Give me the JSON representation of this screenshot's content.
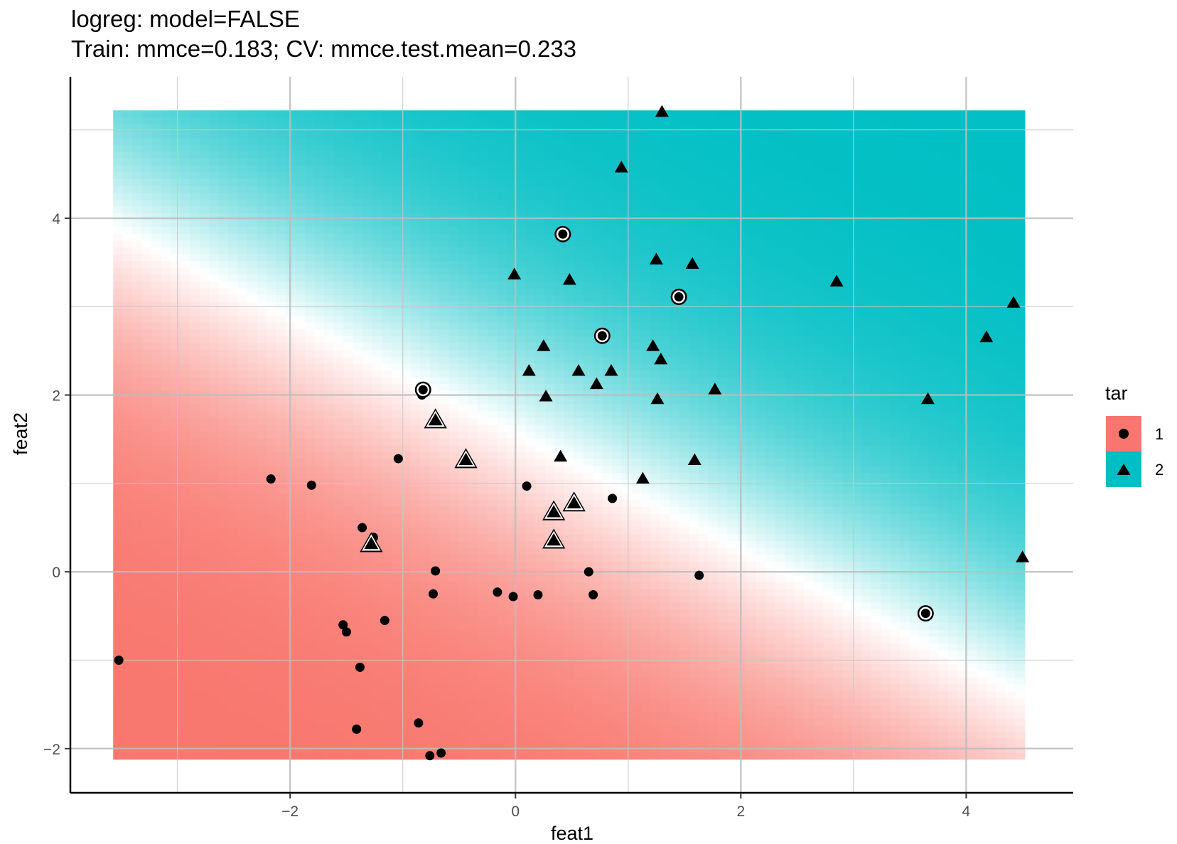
{
  "chart_data": {
    "type": "scatter",
    "title": "logreg: model=FALSE",
    "subtitle": "Train: mmce=0.183; CV: mmce.test.mean=0.233",
    "xlabel": "feat1",
    "ylabel": "feat2",
    "xlim": [
      -3.95,
      4.95
    ],
    "ylim": [
      -2.5,
      5.6
    ],
    "x_ticks": [
      -2,
      0,
      2,
      4
    ],
    "x_tick_labels": [
      "−2",
      "0",
      "2",
      "4"
    ],
    "y_ticks": [
      -2,
      0,
      2,
      4
    ],
    "y_tick_labels": [
      "−2",
      "0",
      "2",
      "4"
    ],
    "grid": true,
    "background": {
      "type": "probability-surface",
      "x_range": [
        -3.57,
        4.52
      ],
      "y_range": [
        -2.12,
        5.22
      ],
      "boundary": {
        "slope": -0.655,
        "intercept": 1.57
      },
      "color_class1": "#F8766D",
      "color_class2": "#00BFC4"
    },
    "legend": {
      "title": "tar",
      "position": "right",
      "entries": [
        {
          "label": "1",
          "shape": "circle",
          "color": "#F8766D"
        },
        {
          "label": "2",
          "shape": "triangle",
          "color": "#00BFC4"
        }
      ]
    },
    "series": [
      {
        "name": "1",
        "shape": "circle",
        "points": [
          [
            -3.52,
            -1.0
          ],
          [
            -2.17,
            1.05
          ],
          [
            -1.81,
            0.98
          ],
          [
            -1.36,
            0.5
          ],
          [
            -1.26,
            0.39
          ],
          [
            -1.04,
            1.28
          ],
          [
            -0.83,
            2.0
          ],
          [
            -0.71,
            0.01
          ],
          [
            -0.73,
            -0.25
          ],
          [
            -1.53,
            -0.6
          ],
          [
            -1.5,
            -0.68
          ],
          [
            -1.16,
            -0.55
          ],
          [
            -1.38,
            -1.08
          ],
          [
            -1.41,
            -1.78
          ],
          [
            -0.86,
            -1.71
          ],
          [
            -0.76,
            -2.08
          ],
          [
            -0.66,
            -2.05
          ],
          [
            -0.16,
            -0.23
          ],
          [
            -0.02,
            -0.28
          ],
          [
            0.2,
            -0.26
          ],
          [
            0.1,
            0.97
          ],
          [
            0.65,
            0.0
          ],
          [
            0.69,
            -0.26
          ],
          [
            0.86,
            0.83
          ],
          [
            1.63,
            -0.04
          ]
        ]
      },
      {
        "name": "2",
        "shape": "triangle",
        "points": [
          [
            1.3,
            5.2
          ],
          [
            0.94,
            4.57
          ],
          [
            1.25,
            3.53
          ],
          [
            1.57,
            3.48
          ],
          [
            -0.01,
            3.36
          ],
          [
            0.48,
            3.3
          ],
          [
            2.85,
            3.28
          ],
          [
            4.42,
            3.04
          ],
          [
            4.18,
            2.65
          ],
          [
            0.25,
            2.55
          ],
          [
            1.22,
            2.55
          ],
          [
            1.29,
            2.4
          ],
          [
            0.12,
            2.27
          ],
          [
            0.56,
            2.27
          ],
          [
            0.85,
            2.27
          ],
          [
            0.72,
            2.12
          ],
          [
            0.27,
            1.98
          ],
          [
            1.26,
            1.95
          ],
          [
            1.77,
            2.06
          ],
          [
            3.66,
            1.95
          ],
          [
            0.4,
            1.3
          ],
          [
            1.59,
            1.26
          ],
          [
            1.13,
            1.05
          ],
          [
            4.5,
            0.16
          ]
        ]
      }
    ],
    "misclassified": [
      {
        "x": 0.42,
        "y": 3.82,
        "shape": "circle"
      },
      {
        "x": 1.45,
        "y": 3.11,
        "shape": "circle"
      },
      {
        "x": 0.77,
        "y": 2.67,
        "shape": "circle"
      },
      {
        "x": -0.82,
        "y": 2.06,
        "shape": "circle"
      },
      {
        "x": 3.64,
        "y": -0.47,
        "shape": "circle"
      },
      {
        "x": -0.71,
        "y": 1.72,
        "shape": "triangle"
      },
      {
        "x": -0.44,
        "y": 1.27,
        "shape": "triangle"
      },
      {
        "x": 0.34,
        "y": 0.68,
        "shape": "triangle"
      },
      {
        "x": 0.52,
        "y": 0.78,
        "shape": "triangle"
      },
      {
        "x": 0.34,
        "y": 0.36,
        "shape": "triangle"
      },
      {
        "x": -1.28,
        "y": 0.32,
        "shape": "triangle"
      }
    ]
  }
}
